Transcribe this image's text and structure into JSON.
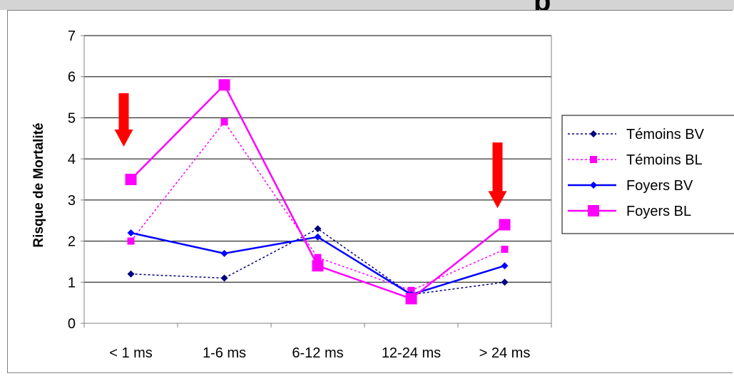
{
  "header": {
    "partial_glyph": "p"
  },
  "chart_data": {
    "type": "line",
    "title": "",
    "xlabel": "",
    "ylabel": "Risque de Mortalité",
    "ylim": [
      0,
      7
    ],
    "yticks": [
      "0",
      "1",
      "2",
      "3",
      "4",
      "5",
      "6",
      "7"
    ],
    "categories": [
      "< 1 ms",
      "1-6 ms",
      "6-12 ms",
      "12-24 ms",
      "> 24 ms"
    ],
    "grid": true,
    "legend_position": "right",
    "series": [
      {
        "name": "Témoins BV",
        "color": "#000080",
        "style": "dotted",
        "marker": "diamond",
        "values": [
          1.2,
          1.1,
          2.3,
          0.7,
          1.0
        ]
      },
      {
        "name": "Témoins BL",
        "color": "#ff00ff",
        "style": "dotted",
        "marker": "square",
        "values": [
          2.0,
          4.9,
          1.6,
          0.8,
          1.8
        ]
      },
      {
        "name": "Foyers BV",
        "color": "#0000ff",
        "style": "solid",
        "marker": "diamond",
        "values": [
          2.2,
          1.7,
          2.1,
          0.7,
          1.4
        ]
      },
      {
        "name": "Foyers BL",
        "color": "#ff00ff",
        "style": "solid",
        "marker": "square-large",
        "values": [
          3.5,
          5.8,
          1.4,
          0.6,
          2.4
        ]
      }
    ],
    "annotations": [
      {
        "type": "arrow-down",
        "category": "< 1 ms",
        "color": "#ff0000",
        "y_from": 5.6,
        "y_to": 4.3
      },
      {
        "type": "arrow-down",
        "category": "> 24 ms",
        "color": "#ff0000",
        "y_from": 4.4,
        "y_to": 2.8
      }
    ]
  }
}
